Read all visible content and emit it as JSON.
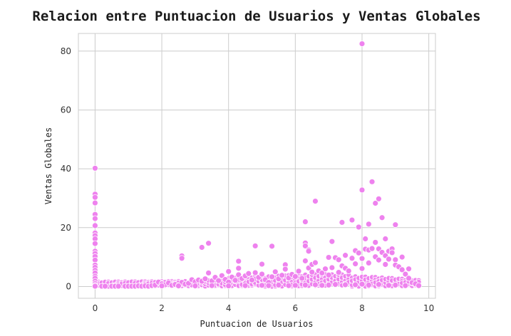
{
  "chart_data": {
    "type": "scatter",
    "title": "Relacion entre Puntuacion de Usuarios y Ventas Globales",
    "xlabel": "Puntuacion de Usuarios",
    "ylabel": "Ventas Globales",
    "xlim": [
      -0.5,
      10.2
    ],
    "ylim": [
      -4,
      86
    ],
    "xticks": [
      0,
      2,
      4,
      6,
      8,
      10
    ],
    "yticks": [
      0,
      20,
      40,
      60,
      80
    ],
    "grid": true,
    "point_color": "#ee82ee",
    "point_edge_color": "#ffffff",
    "points": [
      [
        0,
        40.2
      ],
      [
        0,
        31.4
      ],
      [
        0,
        30.3
      ],
      [
        0,
        28.4
      ],
      [
        0,
        24.5
      ],
      [
        0,
        23.1
      ],
      [
        0,
        20.7
      ],
      [
        0,
        18.2
      ],
      [
        0,
        17.3
      ],
      [
        0,
        16.2
      ],
      [
        0,
        14.6
      ],
      [
        0,
        12.0
      ],
      [
        0,
        11.2
      ],
      [
        0,
        10.2
      ],
      [
        0,
        9.0
      ],
      [
        0,
        7.3
      ],
      [
        0,
        6.5
      ],
      [
        0,
        5.5
      ],
      [
        0,
        4.6
      ],
      [
        0,
        3.5
      ],
      [
        0,
        2.8
      ],
      [
        0,
        1.8
      ],
      [
        0,
        1.0
      ],
      [
        0,
        0.4
      ],
      [
        0,
        0.1
      ],
      [
        0.2,
        0.1
      ],
      [
        0.3,
        0.1
      ],
      [
        0.5,
        0.1
      ],
      [
        0.6,
        0.1
      ],
      [
        0.7,
        0.1
      ],
      [
        0.9,
        0.1
      ],
      [
        1.0,
        0.1
      ],
      [
        1.1,
        0.1
      ],
      [
        1.2,
        0.1
      ],
      [
        1.3,
        0.2
      ],
      [
        1.4,
        0.1
      ],
      [
        1.5,
        0.2
      ],
      [
        1.6,
        0.1
      ],
      [
        1.7,
        0.3
      ],
      [
        1.8,
        0.5
      ],
      [
        1.9,
        1.5
      ],
      [
        2.0,
        0.9
      ],
      [
        2.1,
        0.6
      ],
      [
        2.2,
        1.2
      ],
      [
        2.3,
        0.4
      ],
      [
        2.4,
        0.7
      ],
      [
        2.5,
        0.3
      ],
      [
        2.6,
        1.4
      ],
      [
        2.6,
        10.4
      ],
      [
        2.6,
        9.6
      ],
      [
        2.7,
        0.8
      ],
      [
        2.8,
        1.1
      ],
      [
        2.9,
        2.3
      ],
      [
        3.0,
        1.6
      ],
      [
        3.1,
        2.2
      ],
      [
        3.2,
        13.3
      ],
      [
        3.2,
        1.8
      ],
      [
        3.3,
        2.6
      ],
      [
        3.4,
        14.7
      ],
      [
        3.4,
        4.6
      ],
      [
        3.5,
        1.9
      ],
      [
        3.6,
        3.1
      ],
      [
        3.7,
        2.0
      ],
      [
        3.8,
        3.7
      ],
      [
        3.9,
        2.4
      ],
      [
        4.0,
        5.1
      ],
      [
        4.0,
        1.5
      ],
      [
        4.1,
        3.2
      ],
      [
        4.2,
        2.1
      ],
      [
        4.3,
        8.6
      ],
      [
        4.3,
        6.2
      ],
      [
        4.3,
        4.0
      ],
      [
        4.4,
        2.7
      ],
      [
        4.5,
        3.6
      ],
      [
        4.6,
        4.4
      ],
      [
        4.7,
        2.2
      ],
      [
        4.8,
        13.8
      ],
      [
        4.8,
        4.7
      ],
      [
        4.9,
        3.1
      ],
      [
        5.0,
        7.6
      ],
      [
        5.0,
        4.2
      ],
      [
        5.1,
        2.3
      ],
      [
        5.2,
        1.4
      ],
      [
        5.3,
        13.7
      ],
      [
        5.3,
        3.3
      ],
      [
        5.4,
        5.0
      ],
      [
        5.5,
        2.6
      ],
      [
        5.6,
        3.8
      ],
      [
        5.7,
        7.4
      ],
      [
        5.7,
        5.9
      ],
      [
        5.8,
        2.9
      ],
      [
        5.9,
        4.1
      ],
      [
        6.0,
        3.4
      ],
      [
        6.1,
        5.2
      ],
      [
        6.2,
        2.8
      ],
      [
        6.3,
        22.0
      ],
      [
        6.3,
        14.8
      ],
      [
        6.3,
        13.8
      ],
      [
        6.3,
        8.7
      ],
      [
        6.4,
        12.4
      ],
      [
        6.4,
        12.0
      ],
      [
        6.4,
        6.3
      ],
      [
        6.5,
        4.9
      ],
      [
        6.5,
        7.5
      ],
      [
        6.6,
        29.0
      ],
      [
        6.6,
        8.1
      ],
      [
        6.7,
        5.3
      ],
      [
        6.8,
        4.6
      ],
      [
        6.9,
        6.0
      ],
      [
        7.0,
        9.9
      ],
      [
        7.0,
        3.9
      ],
      [
        7.1,
        15.3
      ],
      [
        7.1,
        6.4
      ],
      [
        7.2,
        9.8
      ],
      [
        7.3,
        9.1
      ],
      [
        7.3,
        4.8
      ],
      [
        7.4,
        21.8
      ],
      [
        7.4,
        7.0
      ],
      [
        7.5,
        10.6
      ],
      [
        7.5,
        6.2
      ],
      [
        7.6,
        5.3
      ],
      [
        7.7,
        22.6
      ],
      [
        7.7,
        9.6
      ],
      [
        7.8,
        12.2
      ],
      [
        7.8,
        7.7
      ],
      [
        7.9,
        20.2
      ],
      [
        7.9,
        11.4
      ],
      [
        8.0,
        82.5
      ],
      [
        8.0,
        32.8
      ],
      [
        8.0,
        9.5
      ],
      [
        8.0,
        6.1
      ],
      [
        8.1,
        16.2
      ],
      [
        8.1,
        12.7
      ],
      [
        8.2,
        21.2
      ],
      [
        8.2,
        12.4
      ],
      [
        8.2,
        8.0
      ],
      [
        8.3,
        35.6
      ],
      [
        8.3,
        12.9
      ],
      [
        8.4,
        28.3
      ],
      [
        8.4,
        15.0
      ],
      [
        8.4,
        10.1
      ],
      [
        8.5,
        29.8
      ],
      [
        8.5,
        12.8
      ],
      [
        8.5,
        9.0
      ],
      [
        8.6,
        23.4
      ],
      [
        8.6,
        11.6
      ],
      [
        8.7,
        16.2
      ],
      [
        8.7,
        10.5
      ],
      [
        8.7,
        7.5
      ],
      [
        8.8,
        12.0
      ],
      [
        8.8,
        9.3
      ],
      [
        8.9,
        12.8
      ],
      [
        8.9,
        11.5
      ],
      [
        9.0,
        21.0
      ],
      [
        9.0,
        9.1
      ],
      [
        9.0,
        7.3
      ],
      [
        9.1,
        6.7
      ],
      [
        9.2,
        10.0
      ],
      [
        9.2,
        5.7
      ],
      [
        9.3,
        4.2
      ],
      [
        9.4,
        6.0
      ],
      [
        9.4,
        2.8
      ],
      [
        9.5,
        1.3
      ],
      [
        9.6,
        0.9
      ],
      [
        9.7,
        0.3
      ],
      [
        6.6,
        0.6
      ],
      [
        7.0,
        0.5
      ],
      [
        7.5,
        0.6
      ],
      [
        8.0,
        0.8
      ],
      [
        8.5,
        0.7
      ],
      [
        9.0,
        0.5
      ],
      [
        5.0,
        0.4
      ],
      [
        5.5,
        0.5
      ],
      [
        6.0,
        0.4
      ],
      [
        4.5,
        0.3
      ],
      [
        4.0,
        0.2
      ],
      [
        3.5,
        0.3
      ],
      [
        3.0,
        0.2
      ],
      [
        2.5,
        0.2
      ],
      [
        2.0,
        0.2
      ],
      [
        7.2,
        0.7
      ],
      [
        7.8,
        0.6
      ],
      [
        8.2,
        0.5
      ],
      [
        8.8,
        0.4
      ],
      [
        9.3,
        0.3
      ],
      [
        6.3,
        0.5
      ],
      [
        6.8,
        0.4
      ],
      [
        5.8,
        0.3
      ],
      [
        5.2,
        0.3
      ]
    ]
  }
}
